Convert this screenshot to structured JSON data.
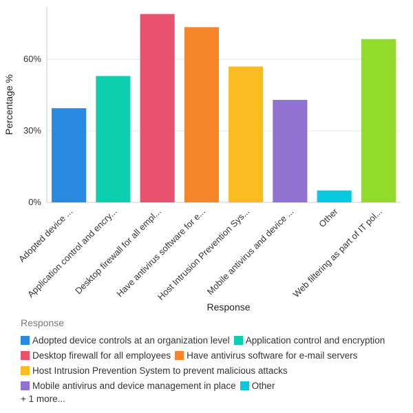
{
  "chart_data": {
    "type": "bar",
    "xlabel": "Response",
    "ylabel": "Percentage %",
    "ylim": [
      0,
      82
    ],
    "yticks": [
      0,
      30,
      60
    ],
    "ytick_labels": [
      "0%",
      "30%",
      "60%"
    ],
    "grid": true,
    "categories": [
      "Adopted device controls at an organization level",
      "Application control and encryption",
      "Desktop firewall for all employees",
      "Have antivirus software for e-mail servers",
      "Host Intrusion Prevention System to prevent malicious attacks",
      "Mobile antivirus and device management in place",
      "Other",
      "Web filtering as part of IT policy"
    ],
    "tick_labels": [
      "Adopted device ...",
      "Application control and encry...",
      "Desktop firewall for all empl...",
      "Have antivirus software for e...",
      "Host Intrusion Prevention Sys...",
      "Mobile antivirus and device ...",
      "Other",
      "Web filtering as part of IT pol..."
    ],
    "values": [
      39.5,
      53,
      79,
      73.5,
      57,
      43,
      5,
      68.5
    ],
    "colors": [
      "#2a8ae2",
      "#0bcfae",
      "#e8526e",
      "#f7862a",
      "#fbbc22",
      "#9272d0",
      "#0ac8e2",
      "#93db2a"
    ]
  },
  "legend": {
    "title": "Response",
    "items": [
      "Adopted device controls at an organization level",
      "Application control and encryption",
      "Desktop firewall for all employees",
      "Have antivirus software for e-mail servers",
      "Host Intrusion Prevention System to prevent malicious attacks",
      "Mobile antivirus and device management in place",
      "Other"
    ],
    "more": "+ 1 more..."
  }
}
